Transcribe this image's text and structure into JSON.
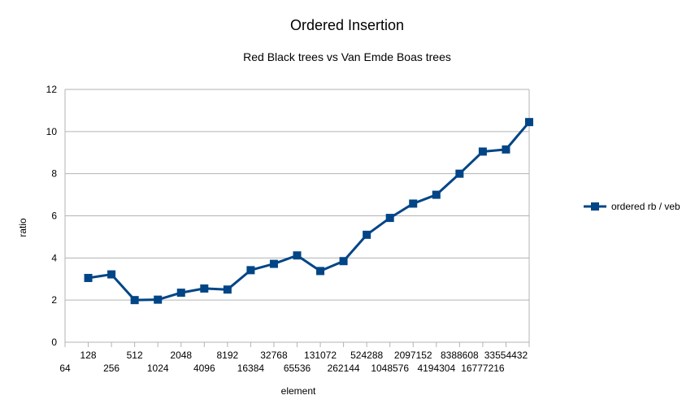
{
  "colors": {
    "series": "#004586",
    "grid": "#b3b3b3",
    "axis": "#b3b3b3",
    "background": "#ffffff"
  },
  "chart_data": {
    "type": "line",
    "title": "Ordered Insertion",
    "subtitle": "Red Black trees vs Van Emde Boas trees",
    "xlabel": "element",
    "ylabel": "ratio",
    "ylim": [
      0,
      12
    ],
    "yticks": [
      "0",
      "2",
      "4",
      "6",
      "8",
      "10",
      "12"
    ],
    "grid": true,
    "legend_position": "right",
    "marker": "square",
    "categories": [
      "64",
      "128",
      "256",
      "512",
      "1024",
      "2048",
      "4096",
      "8192",
      "16384",
      "32768",
      "65536",
      "131072",
      "262144",
      "524288",
      "1048576",
      "2097152",
      "4194304",
      "8388608",
      "16777216",
      "33554432"
    ],
    "series": [
      {
        "name": "ordered rb / veb",
        "values": [
          3.05,
          3.22,
          2.0,
          2.02,
          2.35,
          2.55,
          2.5,
          3.42,
          3.72,
          4.12,
          3.38,
          3.85,
          5.1,
          5.9,
          6.58,
          7.0,
          8.0,
          9.05,
          9.15,
          10.45
        ]
      }
    ]
  }
}
